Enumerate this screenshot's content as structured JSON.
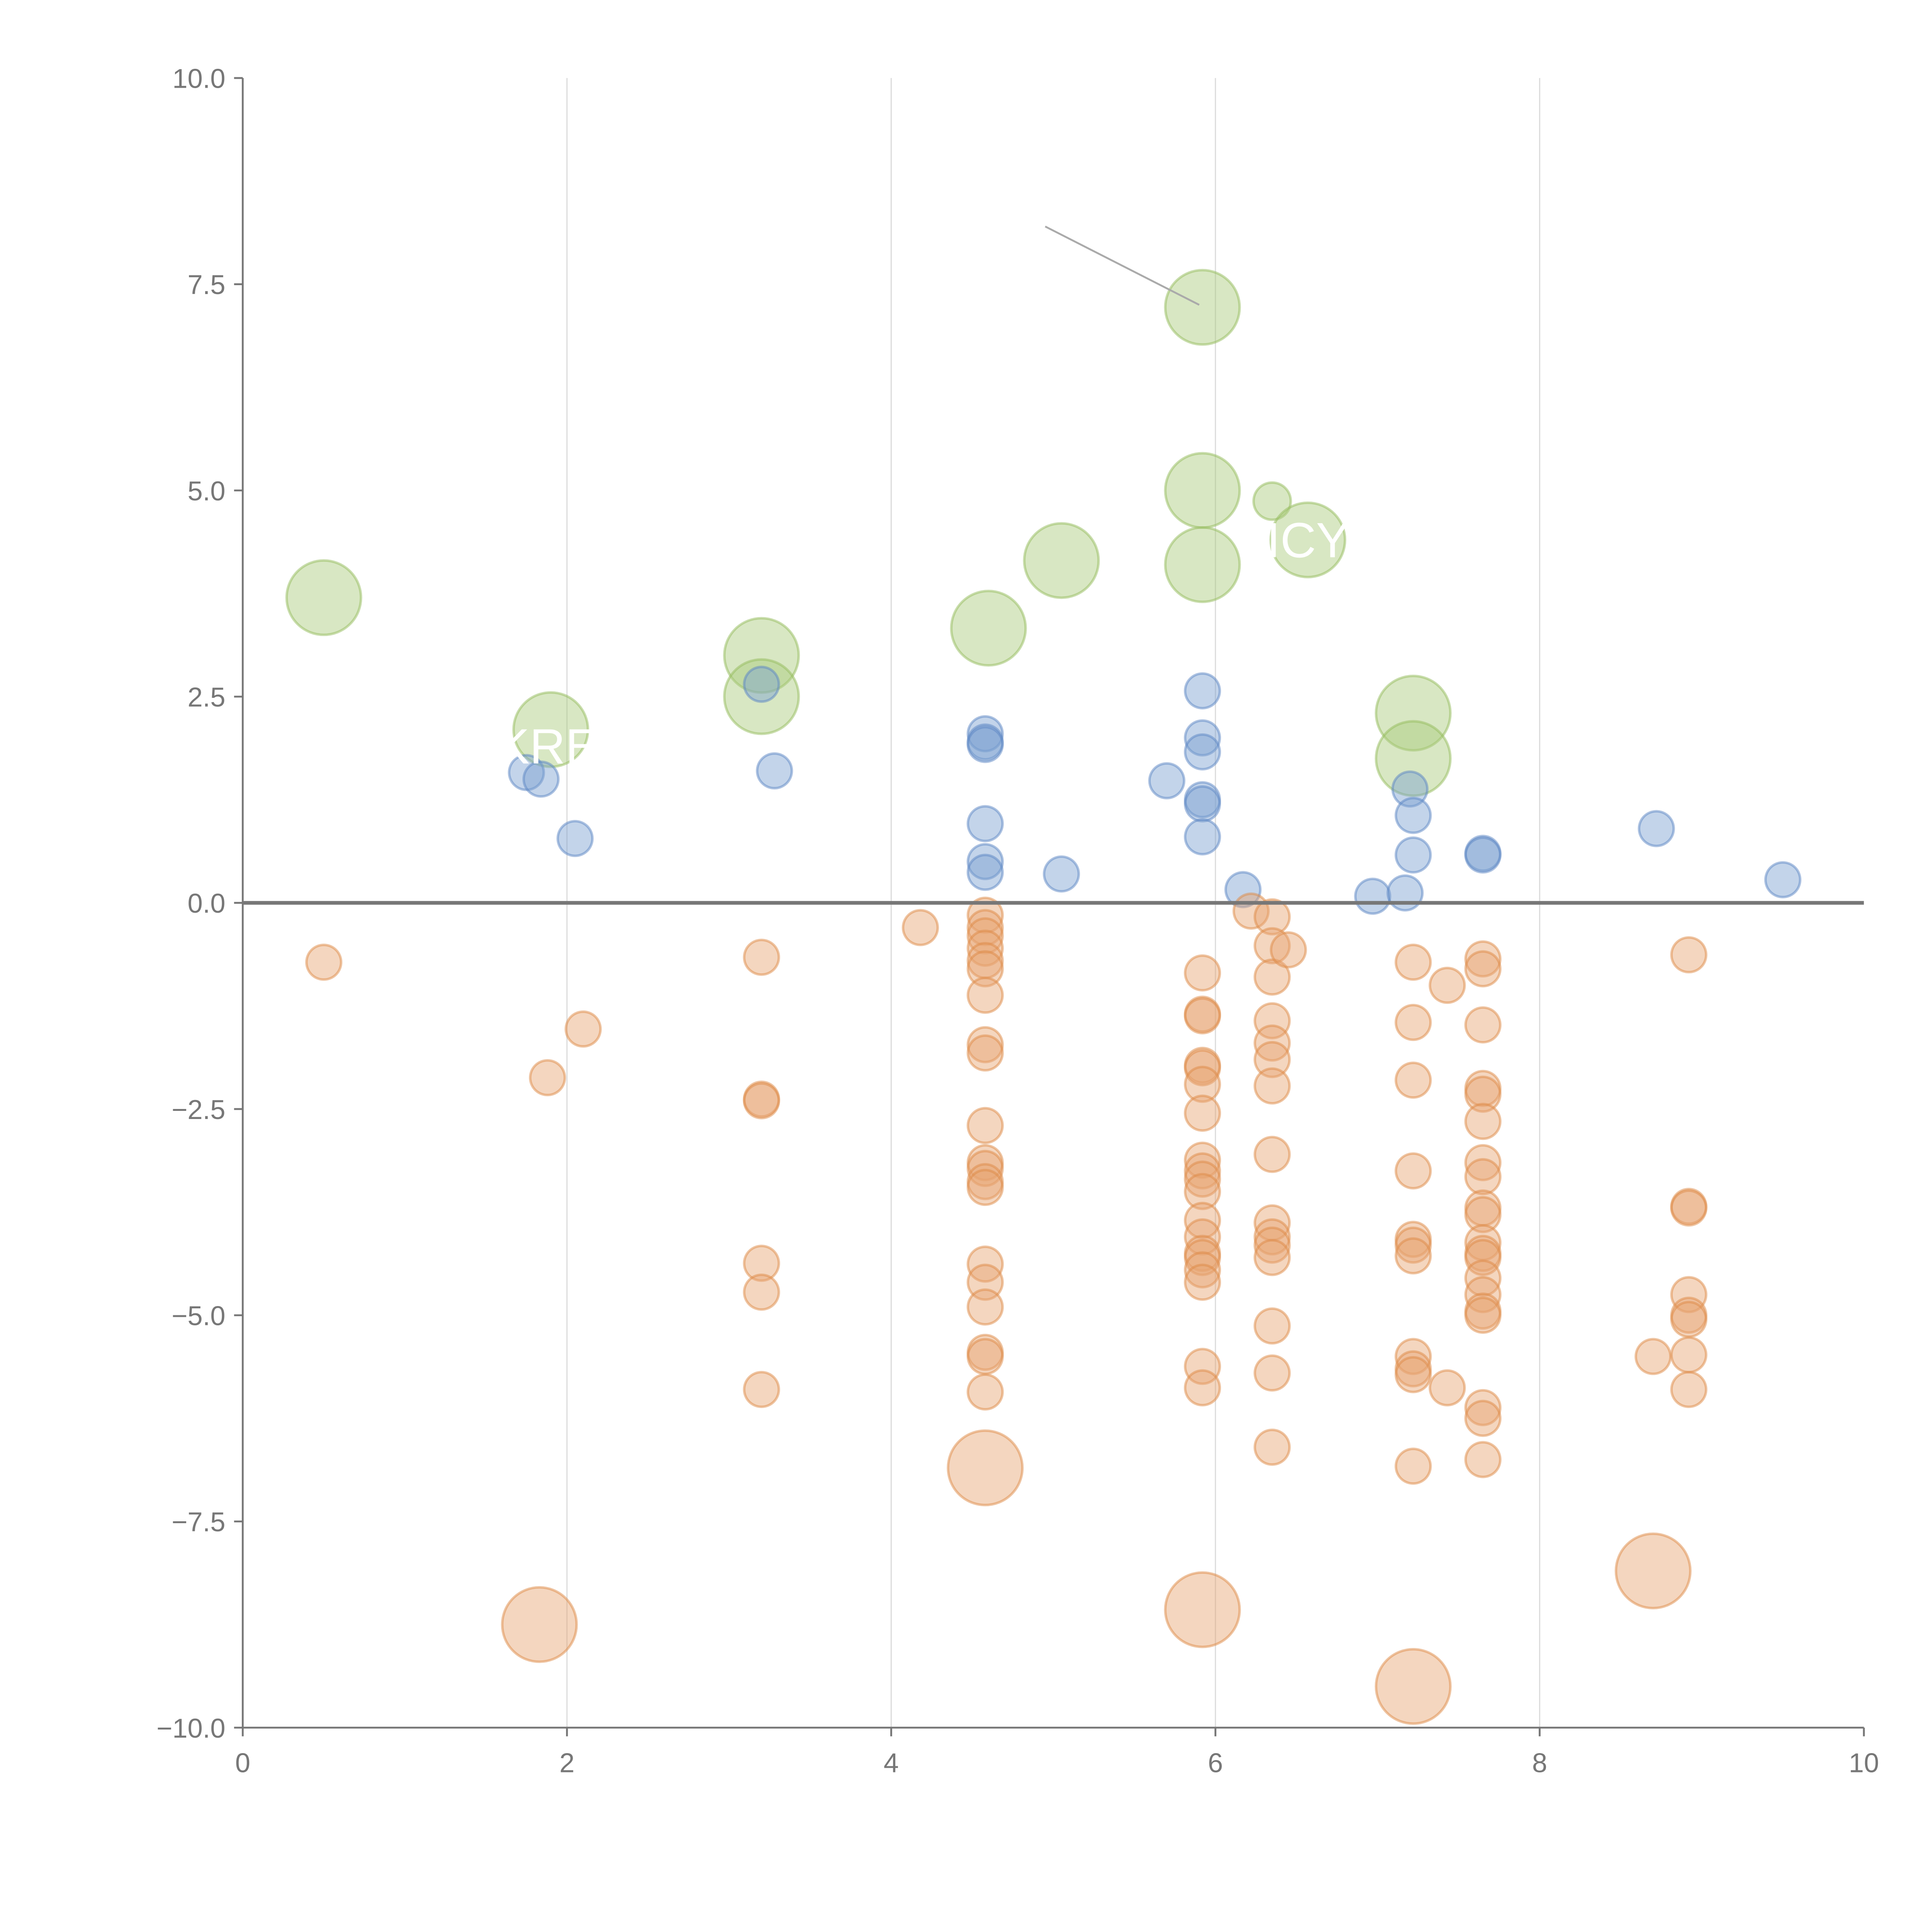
{
  "chart_data": {
    "type": "scatter",
    "title": "",
    "xlabel": "",
    "ylabel": "",
    "xlim": [
      0,
      10
    ],
    "ylim": [
      -10,
      10
    ],
    "x_ticks": [
      "0",
      "2",
      "4",
      "6",
      "8",
      "10"
    ],
    "x_tick_values": [
      0,
      2,
      4,
      6,
      8,
      10
    ],
    "y_ticks": [
      "10.0",
      "7.5",
      "5.0",
      "2.5",
      "0.0",
      "−2.5",
      "−5.0",
      "−7.5",
      "−10.0"
    ],
    "y_tick_values": [
      10,
      7.5,
      5,
      2.5,
      0,
      -2.5,
      -5,
      -7.5,
      -10
    ],
    "grid": "vertical",
    "reference_line_y": 0,
    "labels": [
      {
        "text": "KRE",
        "x": 1.88,
        "y": 1.9
      },
      {
        "text": "ICY",
        "x": 6.57,
        "y": 4.4
      }
    ],
    "annotation_line": {
      "from": [
        4.95,
        8.2
      ],
      "to": [
        5.9,
        7.25
      ]
    },
    "series": [
      {
        "name": "green",
        "color": "#a9c97a",
        "stroke": "#93bb5c",
        "points": [
          [
            0.5,
            3.7,
            4.6
          ],
          [
            1.9,
            2.1,
            4.6
          ],
          [
            3.2,
            3.0,
            4.6
          ],
          [
            3.2,
            2.5,
            4.6
          ],
          [
            4.6,
            3.33,
            4.6
          ],
          [
            5.05,
            4.15,
            4.6
          ],
          [
            5.92,
            7.22,
            4.6
          ],
          [
            5.92,
            5.0,
            4.6
          ],
          [
            5.92,
            4.1,
            4.6
          ],
          [
            6.35,
            4.87,
            1.15
          ],
          [
            6.57,
            4.4,
            4.6
          ],
          [
            7.22,
            2.3,
            4.6
          ],
          [
            7.22,
            1.75,
            4.6
          ]
        ]
      },
      {
        "name": "blue",
        "color": "#7a9fd0",
        "stroke": "#5b86c4",
        "points": [
          [
            1.75,
            1.58,
            1
          ],
          [
            1.84,
            1.5,
            1
          ],
          [
            2.05,
            0.78,
            1
          ],
          [
            3.2,
            2.65,
            1
          ],
          [
            3.28,
            1.6,
            1
          ],
          [
            4.58,
            2.05,
            1
          ],
          [
            4.58,
            1.95,
            1
          ],
          [
            4.58,
            1.92,
            1
          ],
          [
            4.58,
            0.96,
            1
          ],
          [
            4.58,
            0.5,
            1
          ],
          [
            4.58,
            0.37,
            1
          ],
          [
            5.05,
            0.35,
            1
          ],
          [
            5.7,
            1.48,
            1
          ],
          [
            5.92,
            2.57,
            1
          ],
          [
            5.92,
            2.0,
            1
          ],
          [
            5.92,
            1.83,
            1
          ],
          [
            5.92,
            1.25,
            1
          ],
          [
            5.92,
            1.2,
            1
          ],
          [
            5.92,
            0.8,
            1
          ],
          [
            6.17,
            0.16,
            1
          ],
          [
            6.97,
            0.08,
            1
          ],
          [
            7.17,
            0.12,
            1
          ],
          [
            7.2,
            1.38,
            1
          ],
          [
            7.22,
            1.06,
            1
          ],
          [
            7.22,
            0.58,
            1
          ],
          [
            7.65,
            0.6,
            1
          ],
          [
            7.65,
            0.58,
            1
          ],
          [
            8.72,
            0.9,
            1
          ],
          [
            9.5,
            0.28,
            1
          ]
        ]
      },
      {
        "name": "orange",
        "color": "#e6a570",
        "stroke": "#dd8a45",
        "points": [
          [
            0.5,
            -0.72,
            1
          ],
          [
            1.88,
            -2.12,
            1
          ],
          [
            2.1,
            -1.53,
            1
          ],
          [
            1.83,
            -8.75,
            4.6
          ],
          [
            3.2,
            -0.66,
            1
          ],
          [
            3.2,
            -2.38,
            1
          ],
          [
            3.2,
            -2.4,
            1
          ],
          [
            3.2,
            -4.37,
            1
          ],
          [
            3.2,
            -4.72,
            1
          ],
          [
            3.2,
            -5.9,
            1
          ],
          [
            4.18,
            -0.3,
            1
          ],
          [
            4.58,
            -0.15,
            1
          ],
          [
            4.58,
            -0.3,
            1
          ],
          [
            4.58,
            -0.4,
            1
          ],
          [
            4.58,
            -0.55,
            1
          ],
          [
            4.58,
            -0.7,
            1
          ],
          [
            4.58,
            -0.8,
            1
          ],
          [
            4.58,
            -1.12,
            1
          ],
          [
            4.58,
            -1.72,
            1
          ],
          [
            4.58,
            -1.82,
            1
          ],
          [
            4.58,
            -2.7,
            1
          ],
          [
            4.58,
            -3.15,
            1
          ],
          [
            4.58,
            -3.22,
            1
          ],
          [
            4.58,
            -3.38,
            1
          ],
          [
            4.58,
            -3.45,
            1
          ],
          [
            4.58,
            -4.38,
            1
          ],
          [
            4.58,
            -4.6,
            1
          ],
          [
            4.58,
            -4.9,
            1
          ],
          [
            4.58,
            -5.45,
            1
          ],
          [
            4.58,
            -5.5,
            1
          ],
          [
            4.58,
            -5.93,
            1
          ],
          [
            4.58,
            -6.85,
            4.6
          ],
          [
            5.92,
            -0.85,
            1
          ],
          [
            5.92,
            -1.35,
            1
          ],
          [
            5.92,
            -1.37,
            1
          ],
          [
            5.92,
            -1.97,
            1
          ],
          [
            5.92,
            -2.0,
            1
          ],
          [
            5.92,
            -2.2,
            1
          ],
          [
            5.92,
            -2.55,
            1
          ],
          [
            5.92,
            -3.12,
            1
          ],
          [
            5.92,
            -3.25,
            1
          ],
          [
            5.92,
            -3.35,
            1
          ],
          [
            5.92,
            -3.5,
            1
          ],
          [
            5.92,
            -3.85,
            1
          ],
          [
            5.92,
            -4.05,
            1
          ],
          [
            5.92,
            -4.25,
            1
          ],
          [
            5.92,
            -4.3,
            1
          ],
          [
            5.92,
            -4.45,
            1
          ],
          [
            5.92,
            -4.6,
            1
          ],
          [
            5.92,
            -5.62,
            1
          ],
          [
            5.92,
            -5.88,
            1
          ],
          [
            5.92,
            -8.57,
            4.6
          ],
          [
            6.22,
            -0.1,
            1
          ],
          [
            6.35,
            -0.17,
            1
          ],
          [
            6.35,
            -0.52,
            1
          ],
          [
            6.35,
            -0.9,
            1
          ],
          [
            6.35,
            -1.43,
            1
          ],
          [
            6.35,
            -1.7,
            1
          ],
          [
            6.35,
            -1.9,
            1
          ],
          [
            6.35,
            -2.22,
            1
          ],
          [
            6.35,
            -3.05,
            1
          ],
          [
            6.35,
            -3.88,
            1
          ],
          [
            6.35,
            -4.05,
            1
          ],
          [
            6.35,
            -4.15,
            1
          ],
          [
            6.35,
            -4.3,
            1
          ],
          [
            6.35,
            -5.13,
            1
          ],
          [
            6.35,
            -5.7,
            1
          ],
          [
            6.35,
            -6.6,
            1
          ],
          [
            6.45,
            -0.57,
            1
          ],
          [
            7.22,
            -0.72,
            1
          ],
          [
            7.22,
            -1.45,
            1
          ],
          [
            7.22,
            -2.15,
            1
          ],
          [
            7.22,
            -3.25,
            1
          ],
          [
            7.22,
            -4.08,
            1
          ],
          [
            7.22,
            -4.15,
            1
          ],
          [
            7.22,
            -4.28,
            1
          ],
          [
            7.22,
            -5.5,
            1
          ],
          [
            7.22,
            -5.65,
            1
          ],
          [
            7.22,
            -5.72,
            1
          ],
          [
            7.22,
            -6.83,
            1
          ],
          [
            7.22,
            -9.5,
            4.6
          ],
          [
            7.43,
            -1.0,
            1
          ],
          [
            7.43,
            -5.88,
            1
          ],
          [
            7.65,
            -0.68,
            1
          ],
          [
            7.65,
            -0.8,
            1
          ],
          [
            7.65,
            -1.48,
            1
          ],
          [
            7.65,
            -2.25,
            1
          ],
          [
            7.65,
            -2.32,
            1
          ],
          [
            7.65,
            -2.65,
            1
          ],
          [
            7.65,
            -3.15,
            1
          ],
          [
            7.65,
            -3.32,
            1
          ],
          [
            7.65,
            -3.7,
            1
          ],
          [
            7.65,
            -3.78,
            1
          ],
          [
            7.65,
            -4.12,
            1
          ],
          [
            7.65,
            -4.25,
            1
          ],
          [
            7.65,
            -4.3,
            1
          ],
          [
            7.65,
            -4.55,
            1
          ],
          [
            7.65,
            -4.75,
            1
          ],
          [
            7.65,
            -4.95,
            1
          ],
          [
            7.65,
            -5.0,
            1
          ],
          [
            7.65,
            -6.12,
            1
          ],
          [
            7.65,
            -6.25,
            1
          ],
          [
            7.65,
            -6.75,
            1
          ],
          [
            8.7,
            -5.5,
            1
          ],
          [
            8.7,
            -8.1,
            4.6
          ],
          [
            8.92,
            -0.63,
            1
          ],
          [
            8.92,
            -3.68,
            1
          ],
          [
            8.92,
            -3.7,
            1
          ],
          [
            8.92,
            -4.75,
            1
          ],
          [
            8.92,
            -5.0,
            1
          ],
          [
            8.92,
            -5.05,
            1
          ],
          [
            8.92,
            -5.48,
            1
          ],
          [
            8.92,
            -5.9,
            1
          ]
        ]
      }
    ]
  }
}
